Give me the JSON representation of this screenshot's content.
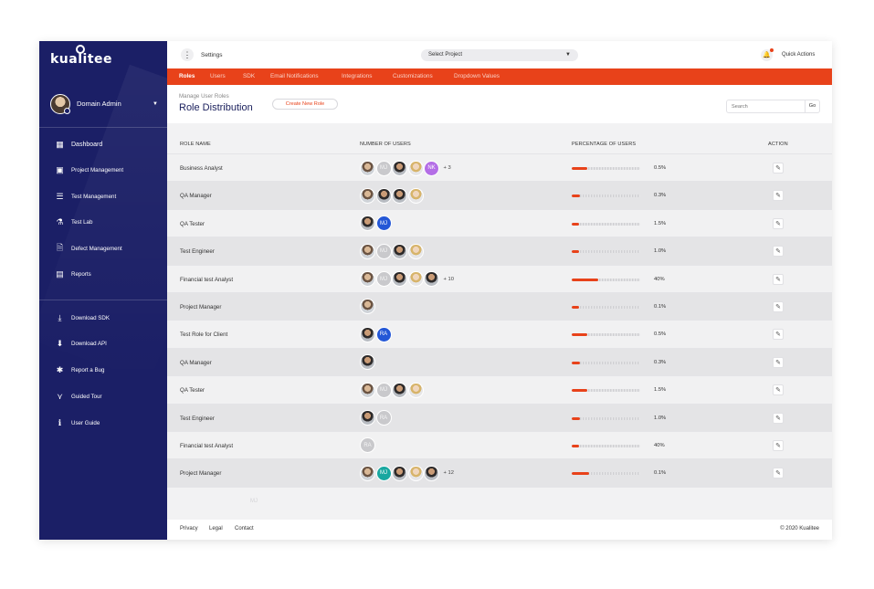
{
  "brand": {
    "logo_text": "kualitee"
  },
  "sidebar": {
    "user": {
      "name": "Domain Admin"
    },
    "nav": [
      {
        "label": "Dashboard",
        "icon": "dashboard-icon",
        "glyph": "▦"
      },
      {
        "label": "Project Management",
        "icon": "project-management-icon",
        "glyph": "▣"
      },
      {
        "label": "Test Management",
        "icon": "test-management-icon",
        "glyph": "☰"
      },
      {
        "label": "Test Lab",
        "icon": "test-lab-icon",
        "glyph": "⚗"
      },
      {
        "label": "Defect Management",
        "icon": "defect-management-icon",
        "glyph": "🗎"
      },
      {
        "label": "Reports",
        "icon": "reports-icon",
        "glyph": "▤"
      }
    ],
    "secondary": [
      {
        "label": "Download SDK",
        "icon": "download-sdk-icon",
        "glyph": "⤓"
      },
      {
        "label": "Download API",
        "icon": "download-api-icon",
        "glyph": "⬇"
      },
      {
        "label": "Report a Bug",
        "icon": "bug-icon",
        "glyph": "✱"
      },
      {
        "label": "Guided Tour",
        "icon": "guided-tour-icon",
        "glyph": "⋎"
      },
      {
        "label": "User Guide",
        "icon": "info-icon",
        "glyph": "ℹ"
      }
    ]
  },
  "topbar": {
    "settings_label": "Settings",
    "project_select": "Select Project",
    "quick_actions": "Quick Actions"
  },
  "tabs": [
    "Roles",
    "Users",
    "SDK",
    "Email Notifications",
    "Integrations",
    "Customizations",
    "Dropdown Values"
  ],
  "header": {
    "breadcrumb": "Manage User Roles",
    "title": "Role Distribution",
    "create_button": "Create New Role",
    "search_placeholder": "Search",
    "go_label": "Go"
  },
  "table": {
    "columns": [
      "ROLE NAME",
      "NUMBER OF USERS",
      "PERCENTAGE OF USERS",
      "ACTION"
    ],
    "rows": [
      {
        "role": "Business Analyst",
        "avatars": [
          "photo",
          "gray:MJ",
          "photo2",
          "photo3",
          "purple:NK"
        ],
        "more": "+ 3",
        "percent": "0.5%",
        "fill": 0.22
      },
      {
        "role": "QA Manager",
        "avatars": [
          "photo",
          "photo2",
          "photo2",
          "photo3"
        ],
        "more": "",
        "percent": "0.3%",
        "fill": 0.12
      },
      {
        "role": "QA Tester",
        "avatars": [
          "photo2",
          "blue:MJ"
        ],
        "more": "",
        "percent": "1.5%",
        "fill": 0.1
      },
      {
        "role": "Test Engineer",
        "avatars": [
          "photo",
          "gray:MJ",
          "photo2",
          "photo3"
        ],
        "more": "",
        "percent": "1.0%",
        "fill": 0.1
      },
      {
        "role": "Financial  test Analyst",
        "avatars": [
          "photo",
          "gray:MJ",
          "photo2",
          "photo3",
          "photo2"
        ],
        "more": "+ 10",
        "percent": "40%",
        "fill": 0.38
      },
      {
        "role": "Project Manager",
        "avatars": [
          "photo"
        ],
        "more": "",
        "percent": "0.1%",
        "fill": 0.1
      },
      {
        "role": "Test Role for Client",
        "avatars": [
          "photo2",
          "blue:RA"
        ],
        "more": "",
        "percent": "0.5%",
        "fill": 0.22
      },
      {
        "role": "QA Manager",
        "avatars": [
          "photo2"
        ],
        "more": "",
        "percent": "0.3%",
        "fill": 0.12
      },
      {
        "role": "QA Tester",
        "avatars": [
          "photo",
          "gray:MJ",
          "photo2",
          "photo3"
        ],
        "more": "",
        "percent": "1.5%",
        "fill": 0.22
      },
      {
        "role": "Test Engineer",
        "avatars": [
          "photo2",
          "gray:RA"
        ],
        "more": "",
        "percent": "1.0%",
        "fill": 0.12
      },
      {
        "role": "Financial  test Analyst",
        "avatars": [
          "gray:RA"
        ],
        "more": "",
        "percent": "40%",
        "fill": 0.1
      },
      {
        "role": "Project Manager",
        "avatars": [
          "photo",
          "teal:MJ",
          "photo2",
          "photo3",
          "photo2"
        ],
        "more": "+ 12",
        "percent": "0.1%",
        "fill": 0.25
      }
    ],
    "ghost_initials": "MJ"
  },
  "footer": {
    "links": [
      "Privacy",
      "Legal",
      "Contact"
    ],
    "copyright": "© 2020 Kualitee"
  },
  "colors": {
    "sidebar": "#1b1f66",
    "accent": "#e8421a",
    "title": "#1a1f5c"
  }
}
